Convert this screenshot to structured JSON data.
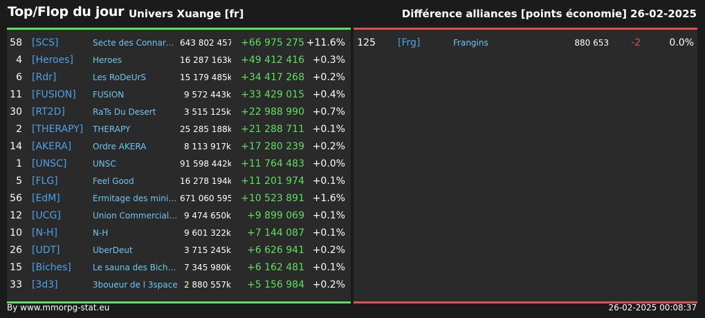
{
  "header": {
    "title": "Top/Flop du jour",
    "universe": "Univers Xuange [fr]",
    "difference_label": "Différence alliances [points économie]",
    "date": "26-02-2025"
  },
  "colors": {
    "background": "#1b1b1b",
    "panel": "#2a2a2a",
    "top_accent": "#5ee05e",
    "flop_accent": "#e05050",
    "tag": "#4aa3e8",
    "name": "#6ec6f0"
  },
  "top": [
    {
      "rank": "58",
      "tag": "[SCS]",
      "name": "Secte des Connard...",
      "points": "643 802 457",
      "diff": "+66 975 275",
      "pct": "+11.6%"
    },
    {
      "rank": "4",
      "tag": "[Heroes]",
      "name": "Heroes",
      "points": "16 287 163k",
      "diff": "+49 412 416",
      "pct": "+0.3%"
    },
    {
      "rank": "6",
      "tag": "[Rdr]",
      "name": "Les RoDeUrS",
      "points": "15 179 485k",
      "diff": "+34 417 268",
      "pct": "+0.2%"
    },
    {
      "rank": "11",
      "tag": "[FUSION]",
      "name": "FUSION",
      "points": "9 572 443k",
      "diff": "+33 429 015",
      "pct": "+0.4%"
    },
    {
      "rank": "30",
      "tag": "[RT2D]",
      "name": "RaTs Du Desert",
      "points": "3 515 125k",
      "diff": "+22 988 990",
      "pct": "+0.7%"
    },
    {
      "rank": "2",
      "tag": "[THERAPY]",
      "name": "THERAPY",
      "points": "25 285 188k",
      "diff": "+21 288 711",
      "pct": "+0.1%"
    },
    {
      "rank": "14",
      "tag": "[AKERA]",
      "name": "Ordre AKERA",
      "points": "8 113 917k",
      "diff": "+17 280 239",
      "pct": "+0.2%"
    },
    {
      "rank": "1",
      "tag": "[UNSC]",
      "name": "UNSC",
      "points": "91 598 442k",
      "diff": "+11 764 483",
      "pct": "+0.0%"
    },
    {
      "rank": "5",
      "tag": "[FLG]",
      "name": "Feel Good",
      "points": "16 278 194k",
      "diff": "+11 201 974",
      "pct": "+0.1%"
    },
    {
      "rank": "56",
      "tag": "[EdM]",
      "name": "Ermitage des minier...",
      "points": "671 060 595",
      "diff": "+10 523 891",
      "pct": "+1.6%"
    },
    {
      "rank": "12",
      "tag": "[UCG]",
      "name": "Union Commerciale...",
      "points": "9 474 650k",
      "diff": "+9 899 069",
      "pct": "+0.1%"
    },
    {
      "rank": "10",
      "tag": "[N-H]",
      "name": "N-H",
      "points": "9 601 322k",
      "diff": "+7 144 087",
      "pct": "+0.1%"
    },
    {
      "rank": "26",
      "tag": "[UDT]",
      "name": "UberDeut",
      "points": "3 715 245k",
      "diff": "+6 626 941",
      "pct": "+0.2%"
    },
    {
      "rank": "15",
      "tag": "[Biches]",
      "name": "Le sauna des Biche...",
      "points": "7 345 980k",
      "diff": "+6 162 481",
      "pct": "+0.1%"
    },
    {
      "rank": "33",
      "tag": "[3d3]",
      "name": "3boueur de l 3space",
      "points": "2 880 557k",
      "diff": "+5 156 984",
      "pct": "+0.2%"
    }
  ],
  "flop": [
    {
      "rank": "125",
      "tag": "[Frg]",
      "name": "Frangins",
      "points": "880 653",
      "diff": "-2",
      "pct": "0.0%"
    }
  ],
  "footer": {
    "source": "By www.mmorpg-stat.eu",
    "timestamp": "26-02-2025 00:08:37"
  }
}
